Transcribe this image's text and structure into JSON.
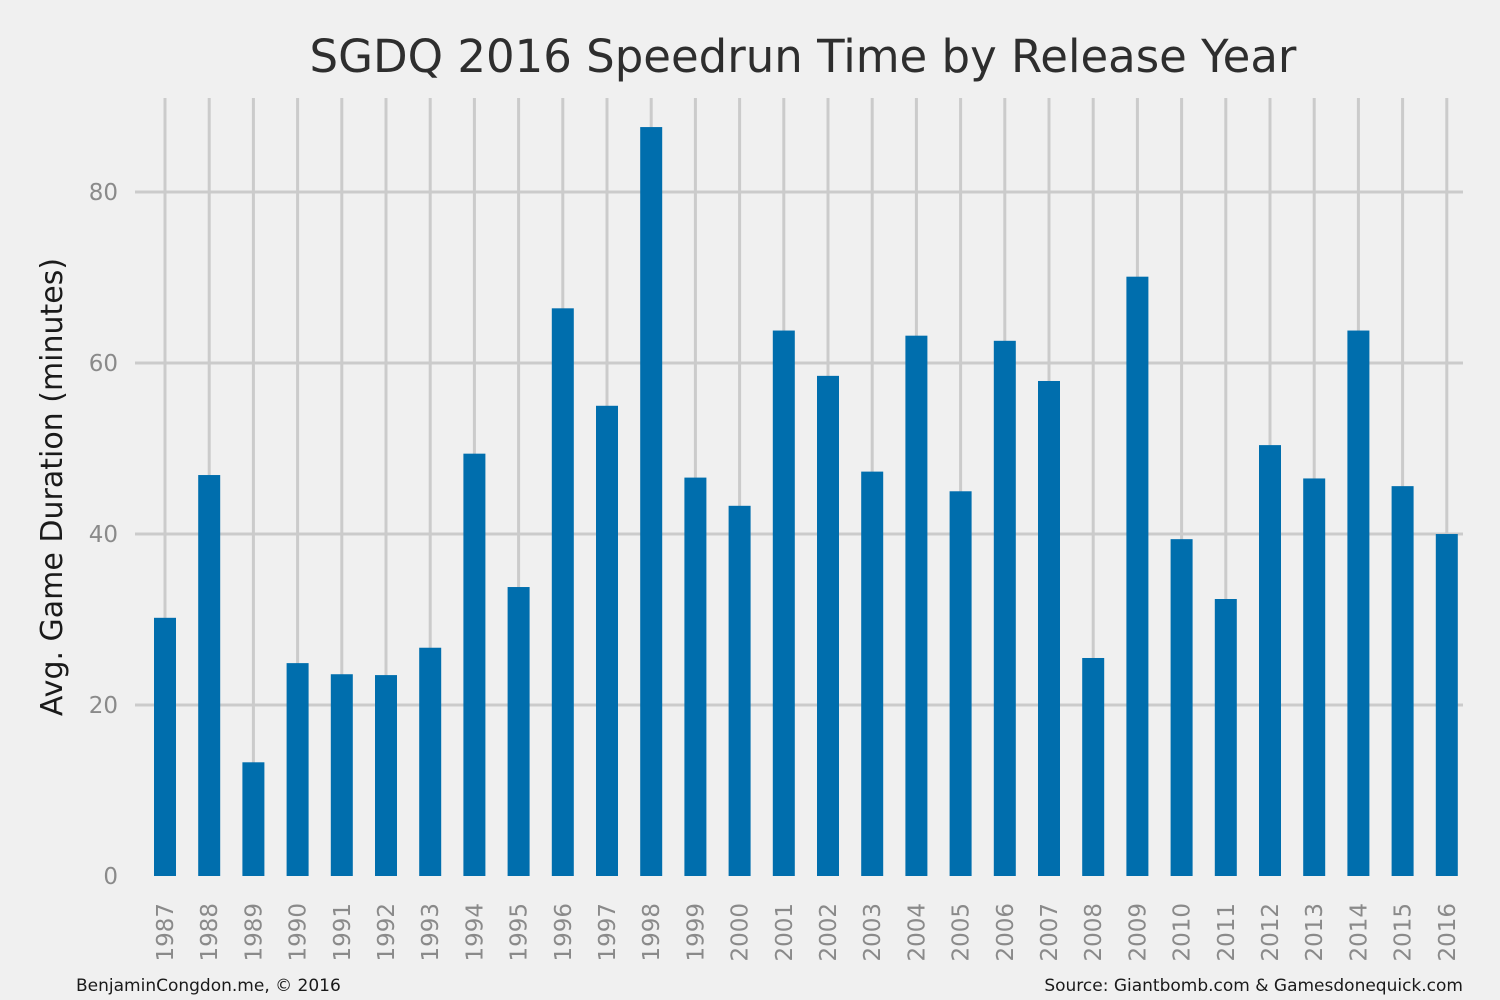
{
  "chart_data": {
    "type": "bar",
    "title": "SGDQ 2016 Speedrun Time by Release Year",
    "xlabel": "",
    "ylabel": "Avg. Game Duration (minutes)",
    "ylim": [
      0,
      91
    ],
    "yticks": [
      0,
      20,
      40,
      60,
      80
    ],
    "grid": true,
    "bar_color": "#006ead",
    "grid_color": "#cbcbcb",
    "background_color": "#f0f0f0",
    "categories": [
      "1987",
      "1988",
      "1989",
      "1990",
      "1991",
      "1992",
      "1993",
      "1994",
      "1995",
      "1996",
      "1997",
      "1998",
      "1999",
      "2000",
      "2001",
      "2002",
      "2003",
      "2004",
      "2005",
      "2006",
      "2007",
      "2008",
      "2009",
      "2010",
      "2011",
      "2012",
      "2013",
      "2014",
      "2015",
      "2016"
    ],
    "values": [
      30.2,
      46.9,
      13.3,
      24.9,
      23.6,
      23.5,
      26.7,
      49.4,
      33.8,
      66.4,
      55.0,
      87.6,
      46.6,
      43.3,
      63.8,
      58.5,
      47.3,
      63.2,
      45.0,
      62.6,
      57.9,
      25.5,
      70.1,
      39.4,
      32.4,
      50.4,
      46.5,
      63.8,
      45.6,
      40.0
    ]
  },
  "footer": {
    "left": "BenjaminCongdon.me, © 2016",
    "right": "Source: Giantbomb.com & Gamesdonequick.com"
  }
}
